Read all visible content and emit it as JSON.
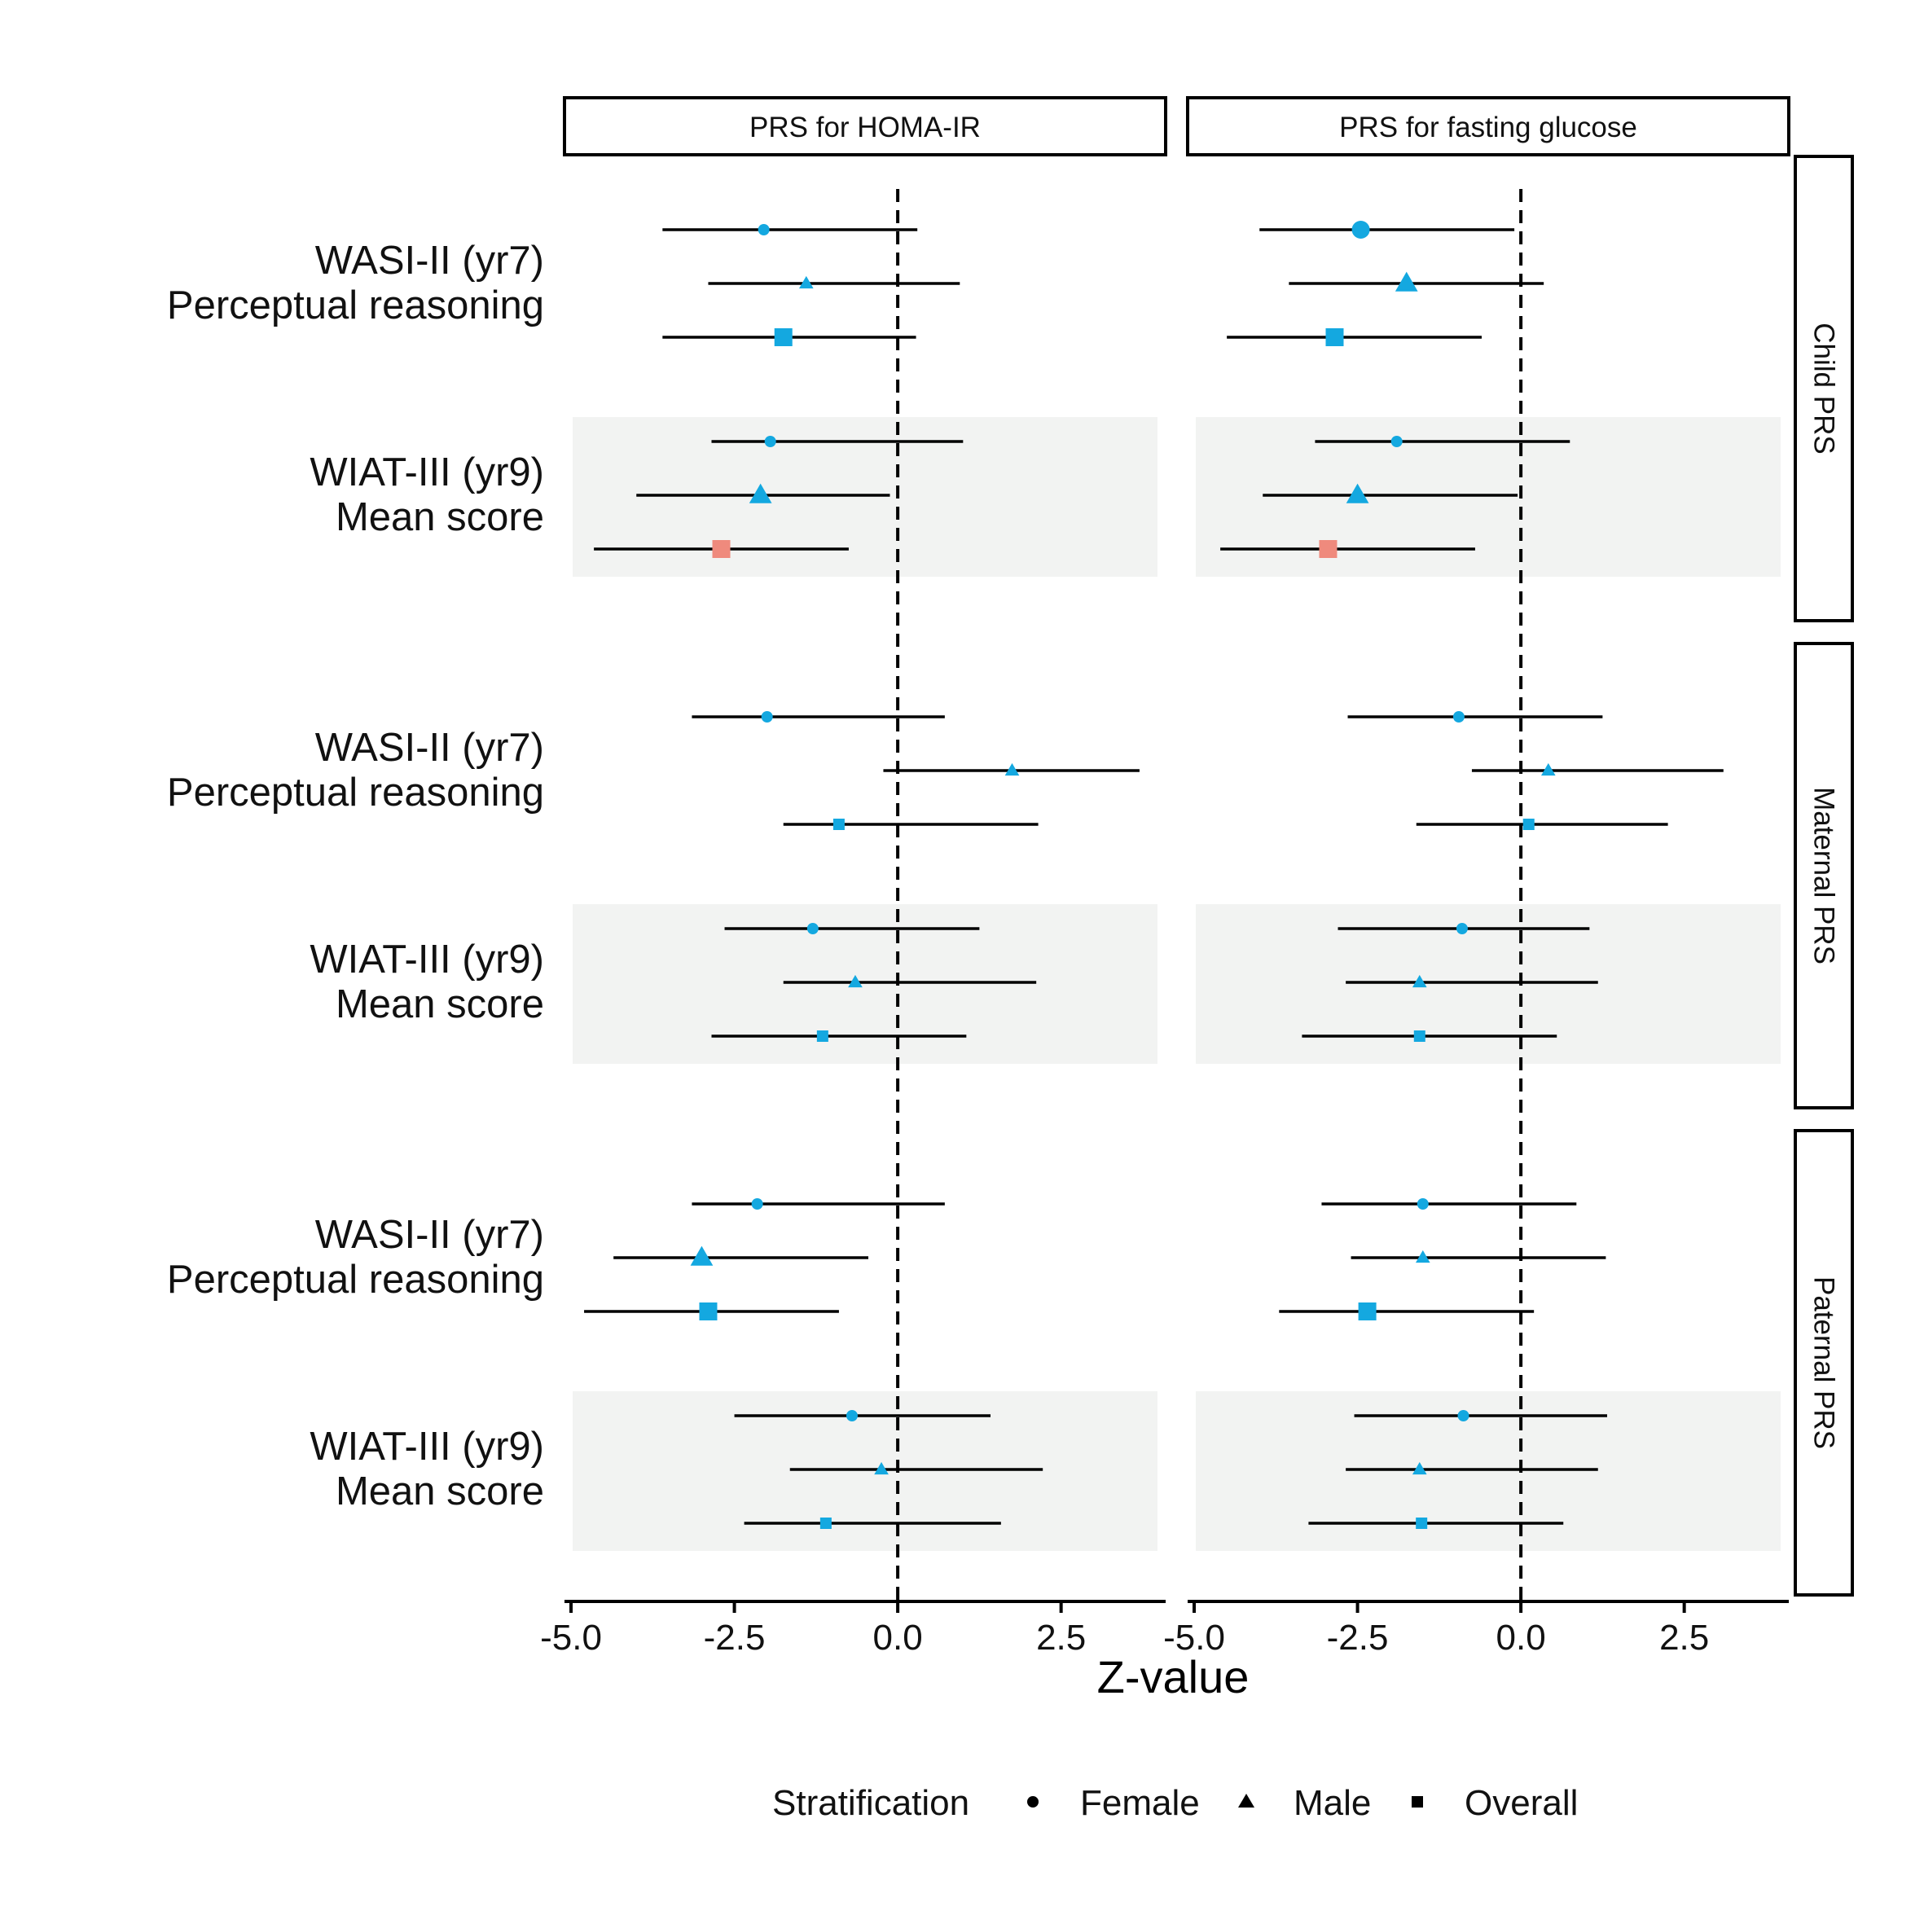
{
  "chart_data": {
    "type": "forest",
    "xlabel": "Z-value",
    "ylabel": "",
    "xlim": [
      -5.1,
      4.1
    ],
    "x_ticks": [
      "-5.0",
      "-2.5",
      "0.0",
      "2.5"
    ],
    "x_tick_values": [
      -5.0,
      -2.5,
      0.0,
      2.5
    ],
    "reference_line": 0,
    "grid": false,
    "columns": [
      "PRS for HOMA-IR",
      "PRS for fasting glucose"
    ],
    "rows": [
      "Child PRS",
      "Maternal PRS",
      "Paternal PRS"
    ],
    "outcomes": [
      {
        "line1": "WASI-II (yr7)",
        "line2": "Perceptual reasoning"
      },
      {
        "line1": "WIAT-III (yr9)",
        "line2": "Mean score"
      }
    ],
    "legend": {
      "title": "Stratification",
      "position": "bottom",
      "entries": [
        {
          "label": "Female",
          "shape": "circle"
        },
        {
          "label": "Male",
          "shape": "triangle"
        },
        {
          "label": "Overall",
          "shape": "square"
        }
      ]
    },
    "colors": {
      "blue": "#14a8e0",
      "red": "#ef8a7d",
      "panel_shade": "#f2f3f2"
    },
    "series": [
      {
        "row": 0,
        "col": 0,
        "outcome": 0,
        "strata": [
          {
            "shape": "circle",
            "z": -2.05,
            "low": -3.6,
            "high": 0.3,
            "size": "s",
            "color": "blue"
          },
          {
            "shape": "triangle",
            "z": -1.4,
            "low": -2.9,
            "high": 0.95,
            "size": "s",
            "color": "blue"
          },
          {
            "shape": "square",
            "z": -1.75,
            "low": -3.6,
            "high": 0.28,
            "size": "l",
            "color": "blue"
          }
        ]
      },
      {
        "row": 0,
        "col": 0,
        "outcome": 1,
        "strata": [
          {
            "shape": "circle",
            "z": -1.95,
            "low": -2.85,
            "high": 1.0,
            "size": "s",
            "color": "blue"
          },
          {
            "shape": "triangle",
            "z": -2.1,
            "low": -4.0,
            "high": -0.12,
            "size": "l",
            "color": "blue"
          },
          {
            "shape": "square",
            "z": -2.7,
            "low": -4.65,
            "high": -0.75,
            "size": "l",
            "color": "red"
          }
        ]
      },
      {
        "row": 0,
        "col": 1,
        "outcome": 0,
        "strata": [
          {
            "shape": "circle",
            "z": -2.45,
            "low": -4.0,
            "high": -0.1,
            "size": "l",
            "color": "blue"
          },
          {
            "shape": "triangle",
            "z": -1.75,
            "low": -3.55,
            "high": 0.35,
            "size": "l",
            "color": "blue"
          },
          {
            "shape": "square",
            "z": -2.85,
            "low": -4.5,
            "high": -0.6,
            "size": "l",
            "color": "blue"
          }
        ]
      },
      {
        "row": 0,
        "col": 1,
        "outcome": 1,
        "strata": [
          {
            "shape": "circle",
            "z": -1.9,
            "low": -3.15,
            "high": 0.75,
            "size": "s",
            "color": "blue"
          },
          {
            "shape": "triangle",
            "z": -2.5,
            "low": -3.95,
            "high": -0.05,
            "size": "l",
            "color": "blue"
          },
          {
            "shape": "square",
            "z": -2.95,
            "low": -4.6,
            "high": -0.7,
            "size": "l",
            "color": "red"
          }
        ]
      },
      {
        "row": 1,
        "col": 0,
        "outcome": 0,
        "strata": [
          {
            "shape": "circle",
            "z": -2.0,
            "low": -3.15,
            "high": 0.72,
            "size": "s",
            "color": "blue"
          },
          {
            "shape": "triangle",
            "z": 1.75,
            "low": -0.22,
            "high": 3.7,
            "size": "s",
            "color": "blue"
          },
          {
            "shape": "square",
            "z": -0.9,
            "low": -1.75,
            "high": 2.15,
            "size": "s",
            "color": "blue"
          }
        ]
      },
      {
        "row": 1,
        "col": 0,
        "outcome": 1,
        "strata": [
          {
            "shape": "circle",
            "z": -1.3,
            "low": -2.65,
            "high": 1.25,
            "size": "s",
            "color": "blue"
          },
          {
            "shape": "triangle",
            "z": -0.65,
            "low": -1.75,
            "high": 2.12,
            "size": "s",
            "color": "blue"
          },
          {
            "shape": "square",
            "z": -1.15,
            "low": -2.85,
            "high": 1.05,
            "size": "s",
            "color": "blue"
          }
        ]
      },
      {
        "row": 1,
        "col": 1,
        "outcome": 0,
        "strata": [
          {
            "shape": "circle",
            "z": -0.95,
            "low": -2.65,
            "high": 1.25,
            "size": "s",
            "color": "blue"
          },
          {
            "shape": "triangle",
            "z": 0.42,
            "low": -0.75,
            "high": 3.1,
            "size": "s",
            "color": "blue"
          },
          {
            "shape": "square",
            "z": 0.12,
            "low": -1.6,
            "high": 2.25,
            "size": "s",
            "color": "blue"
          }
        ]
      },
      {
        "row": 1,
        "col": 1,
        "outcome": 1,
        "strata": [
          {
            "shape": "circle",
            "z": -0.9,
            "low": -2.8,
            "high": 1.05,
            "size": "s",
            "color": "blue"
          },
          {
            "shape": "triangle",
            "z": -1.55,
            "low": -2.68,
            "high": 1.18,
            "size": "s",
            "color": "blue"
          },
          {
            "shape": "square",
            "z": -1.55,
            "low": -3.35,
            "high": 0.55,
            "size": "s",
            "color": "blue"
          }
        ]
      },
      {
        "row": 2,
        "col": 0,
        "outcome": 0,
        "strata": [
          {
            "shape": "circle",
            "z": -2.15,
            "low": -3.15,
            "high": 0.72,
            "size": "s",
            "color": "blue"
          },
          {
            "shape": "triangle",
            "z": -3.0,
            "low": -4.35,
            "high": -0.45,
            "size": "l",
            "color": "blue"
          },
          {
            "shape": "square",
            "z": -2.9,
            "low": -4.8,
            "high": -0.9,
            "size": "l",
            "color": "blue"
          }
        ]
      },
      {
        "row": 2,
        "col": 0,
        "outcome": 1,
        "strata": [
          {
            "shape": "circle",
            "z": -0.7,
            "low": -2.5,
            "high": 1.42,
            "size": "s",
            "color": "blue"
          },
          {
            "shape": "triangle",
            "z": -0.25,
            "low": -1.65,
            "high": 2.22,
            "size": "s",
            "color": "blue"
          },
          {
            "shape": "square",
            "z": -1.1,
            "low": -2.35,
            "high": 1.58,
            "size": "s",
            "color": "blue"
          }
        ]
      },
      {
        "row": 2,
        "col": 1,
        "outcome": 0,
        "strata": [
          {
            "shape": "circle",
            "z": -1.5,
            "low": -3.05,
            "high": 0.85,
            "size": "s",
            "color": "blue"
          },
          {
            "shape": "triangle",
            "z": -1.5,
            "low": -2.6,
            "high": 1.3,
            "size": "s",
            "color": "blue"
          },
          {
            "shape": "square",
            "z": -2.35,
            "low": -3.7,
            "high": 0.2,
            "size": "l",
            "color": "blue"
          }
        ]
      },
      {
        "row": 2,
        "col": 1,
        "outcome": 1,
        "strata": [
          {
            "shape": "circle",
            "z": -0.88,
            "low": -2.55,
            "high": 1.32,
            "size": "s",
            "color": "blue"
          },
          {
            "shape": "triangle",
            "z": -1.55,
            "low": -2.68,
            "high": 1.18,
            "size": "s",
            "color": "blue"
          },
          {
            "shape": "square",
            "z": -1.52,
            "low": -3.25,
            "high": 0.65,
            "size": "s",
            "color": "blue"
          }
        ]
      }
    ]
  }
}
